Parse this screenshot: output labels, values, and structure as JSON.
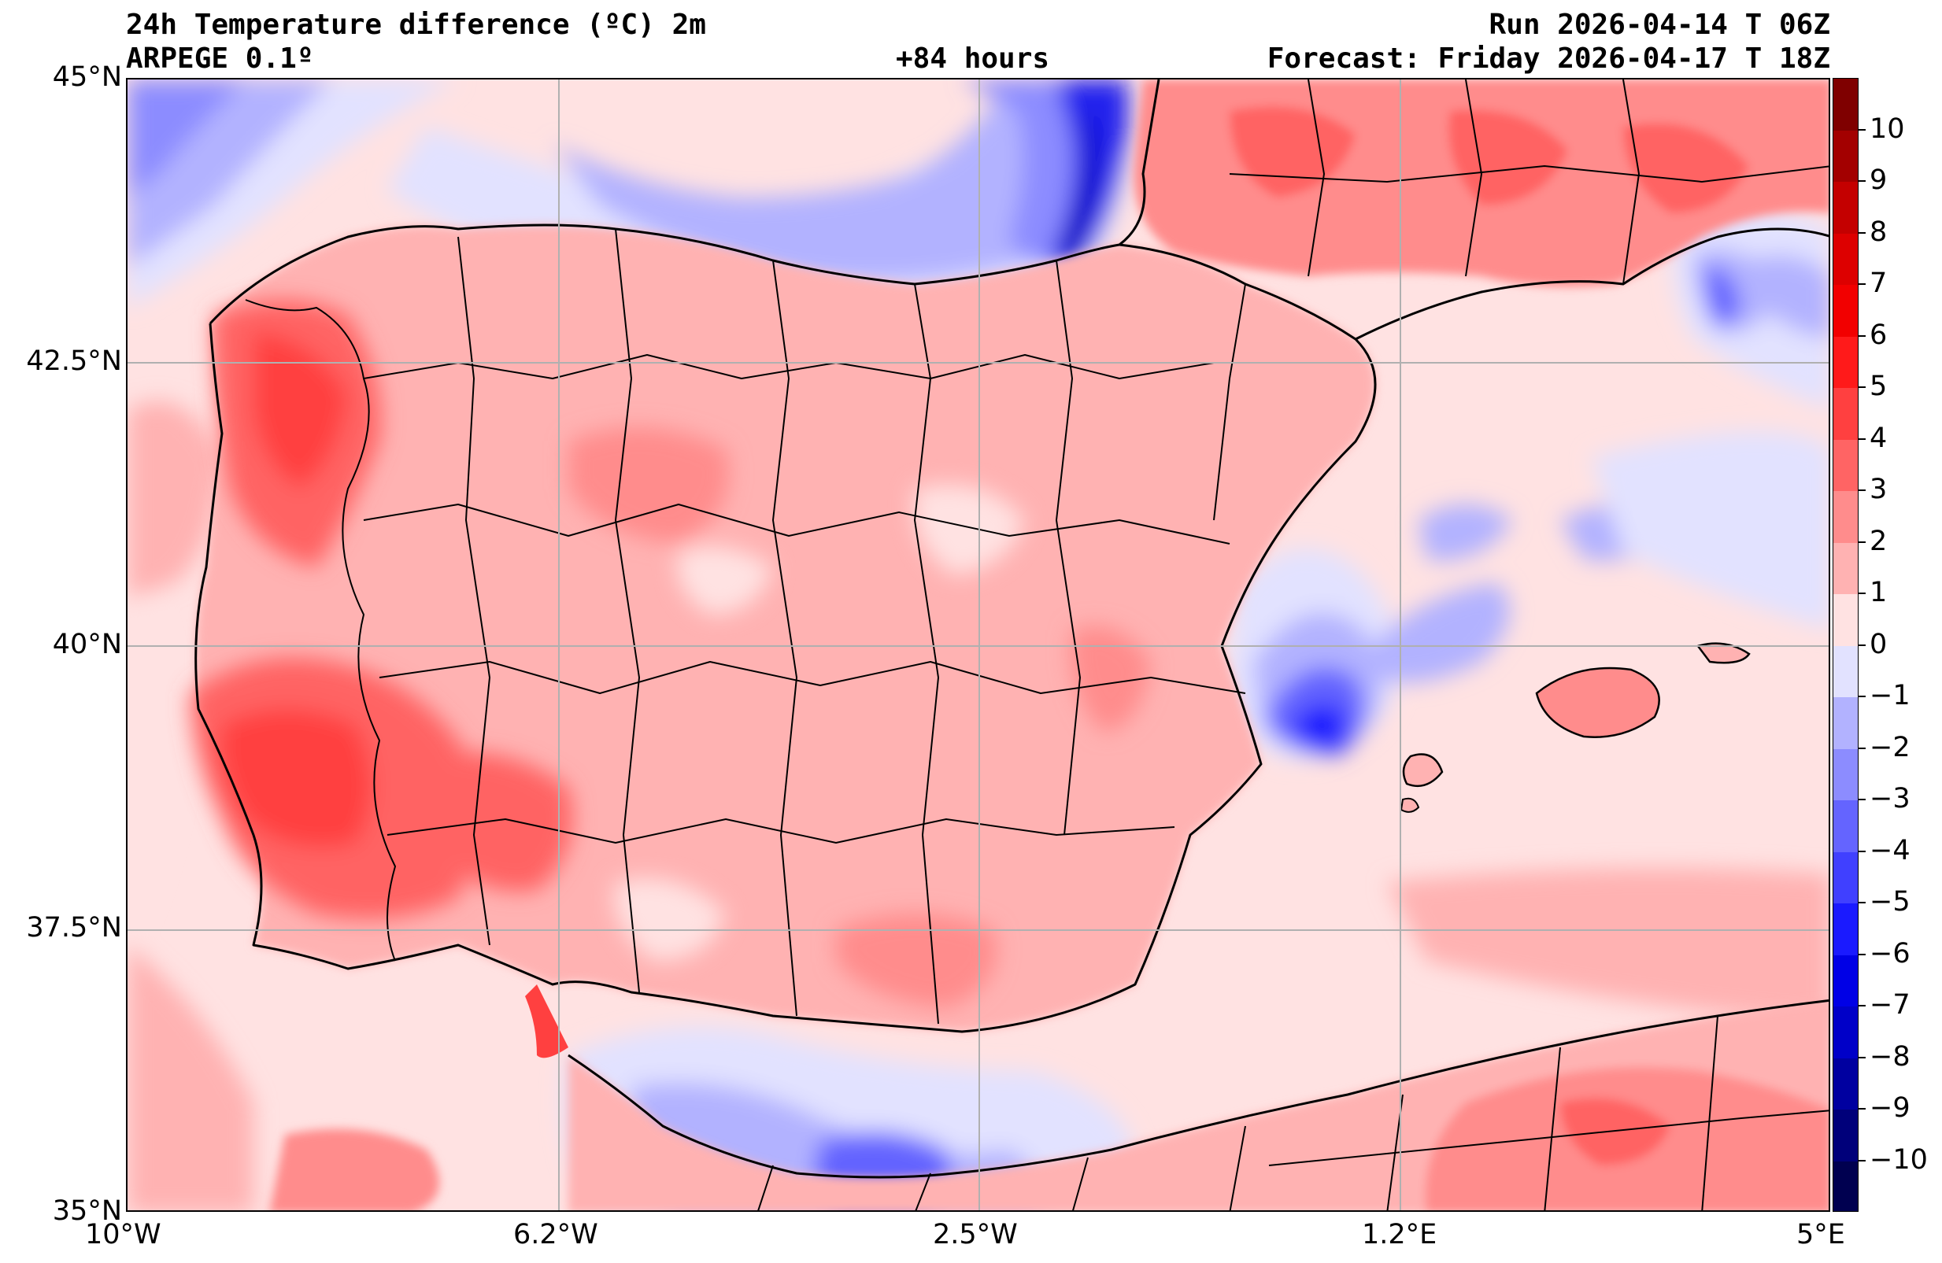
{
  "header": {
    "title": "24h Temperature difference (ºC) 2m",
    "model": "ARPEGE 0.1º",
    "lead_time": "+84 hours",
    "run": "Run 2026-04-14 T 06Z",
    "forecast": "Forecast: Friday 2026-04-17 T 18Z"
  },
  "map": {
    "projection": "lat-lon",
    "lon_range": [
      -10,
      5
    ],
    "lat_range": [
      35,
      45
    ],
    "lat_ticks": [
      "45°N",
      "42.5°N",
      "40°N",
      "37.5°N",
      "35°N"
    ],
    "lon_ticks": [
      "10°W",
      "6.2°W",
      "2.5°W",
      "1.2°E",
      "5°E"
    ],
    "grid": true,
    "features": [
      "coastlines",
      "country borders",
      "province borders"
    ]
  },
  "colorbar": {
    "orientation": "vertical",
    "placement": "right",
    "labels": [
      "10",
      "9",
      "8",
      "7",
      "6",
      "5",
      "4",
      "3",
      "2",
      "1",
      "0",
      "−1",
      "−2",
      "−3",
      "−4",
      "−5",
      "−6",
      "−7",
      "−8",
      "−9",
      "−10"
    ],
    "levels": [
      11,
      10,
      9,
      8,
      7,
      6,
      5,
      4,
      3,
      2,
      1,
      0,
      -1,
      -2,
      -3,
      -4,
      -5,
      -6,
      -7,
      -8,
      -9,
      -10,
      -11
    ],
    "colors": [
      "#7f0000",
      "#a30000",
      "#c40000",
      "#dd0000",
      "#f20000",
      "#ff1a1a",
      "#ff4040",
      "#ff6464",
      "#ff8c8c",
      "#ffb2b2",
      "#ffe2e2",
      "#e2e2ff",
      "#b2b2ff",
      "#8c8cff",
      "#6464ff",
      "#4040ff",
      "#1a1aff",
      "#0000e6",
      "#0000c8",
      "#0000a0",
      "#00007a",
      "#000050"
    ]
  }
}
